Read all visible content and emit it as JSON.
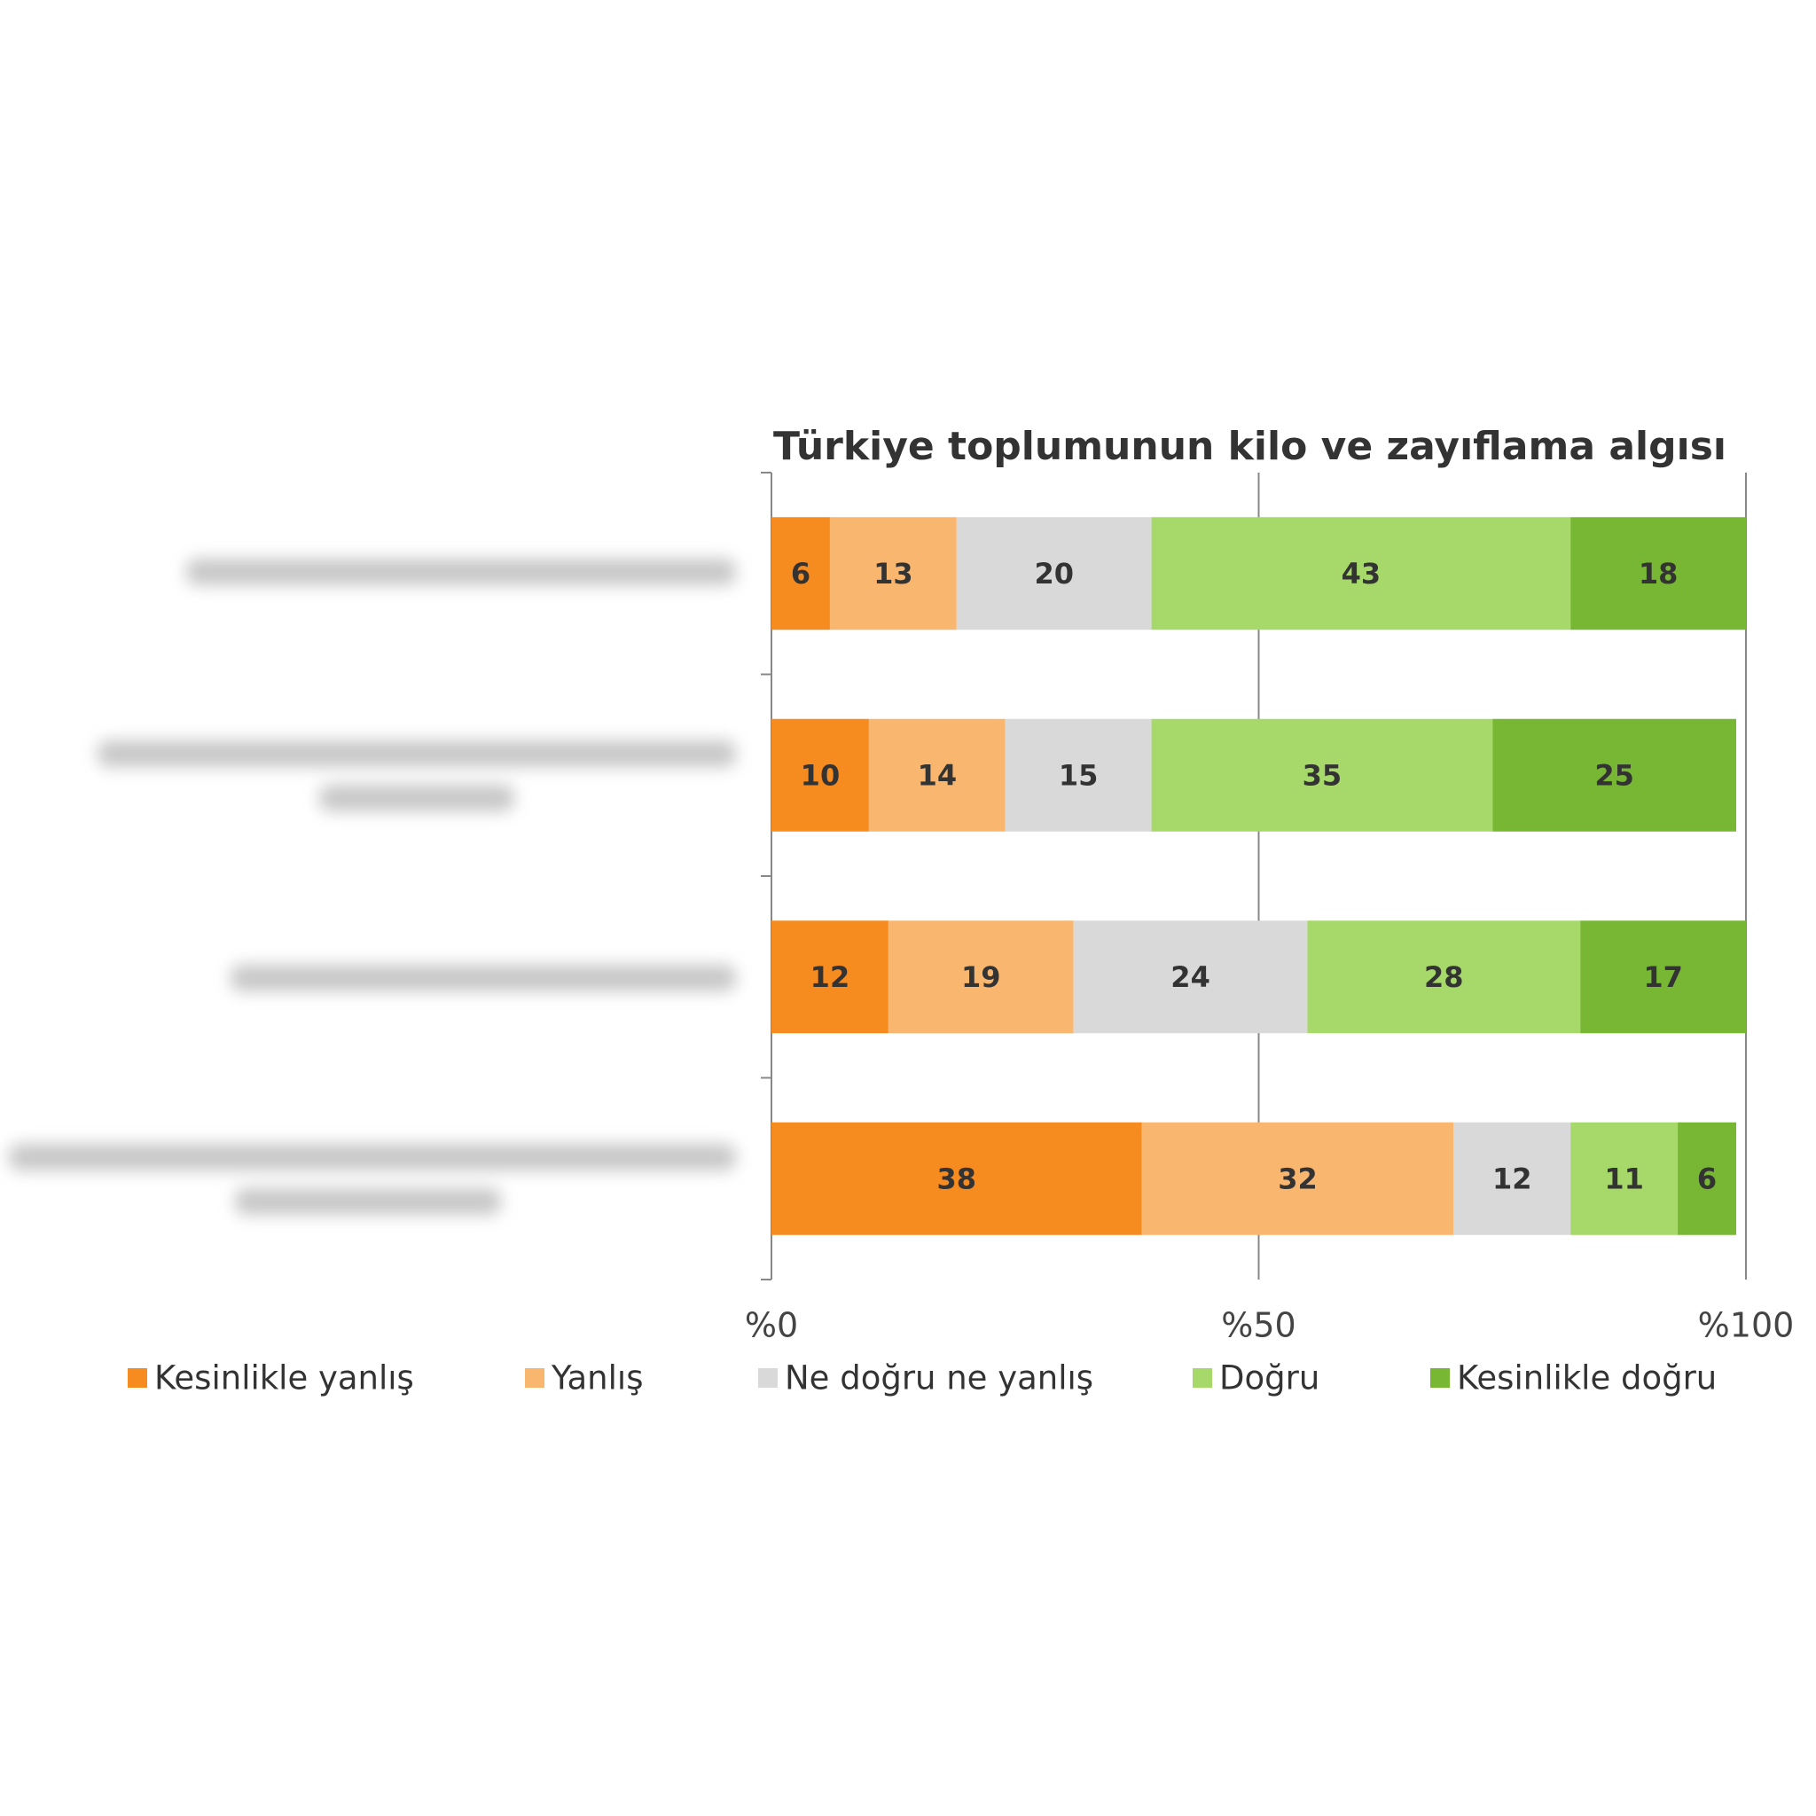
{
  "chart_data": {
    "type": "stacked-barh",
    "title": "Türkiye toplumunun kilo ve zayıflama algısı",
    "categories": [
      null,
      null,
      null,
      null
    ],
    "series": [
      {
        "name": "Kesinlikle yanlış",
        "color": "#f68b1f",
        "values": [
          6,
          10,
          12,
          38
        ]
      },
      {
        "name": "Yanlış",
        "color": "#f9b66e",
        "values": [
          13,
          14,
          19,
          32
        ]
      },
      {
        "name": "Ne doğru ne yanlış",
        "color": "#d9d9d9",
        "values": [
          20,
          15,
          24,
          12
        ]
      },
      {
        "name": "Doğru",
        "color": "#a6d96a",
        "values": [
          43,
          35,
          28,
          11
        ]
      },
      {
        "name": "Kesinlikle doğru",
        "color": "#77b733",
        "values": [
          18,
          25,
          17,
          6
        ]
      }
    ],
    "xlim": [
      0,
      100
    ],
    "xticks": [
      {
        "value": 0,
        "label": "%0"
      },
      {
        "value": 50,
        "label": "%50"
      },
      {
        "value": 100,
        "label": "%100"
      }
    ],
    "grid": true,
    "legend": "bottom"
  }
}
